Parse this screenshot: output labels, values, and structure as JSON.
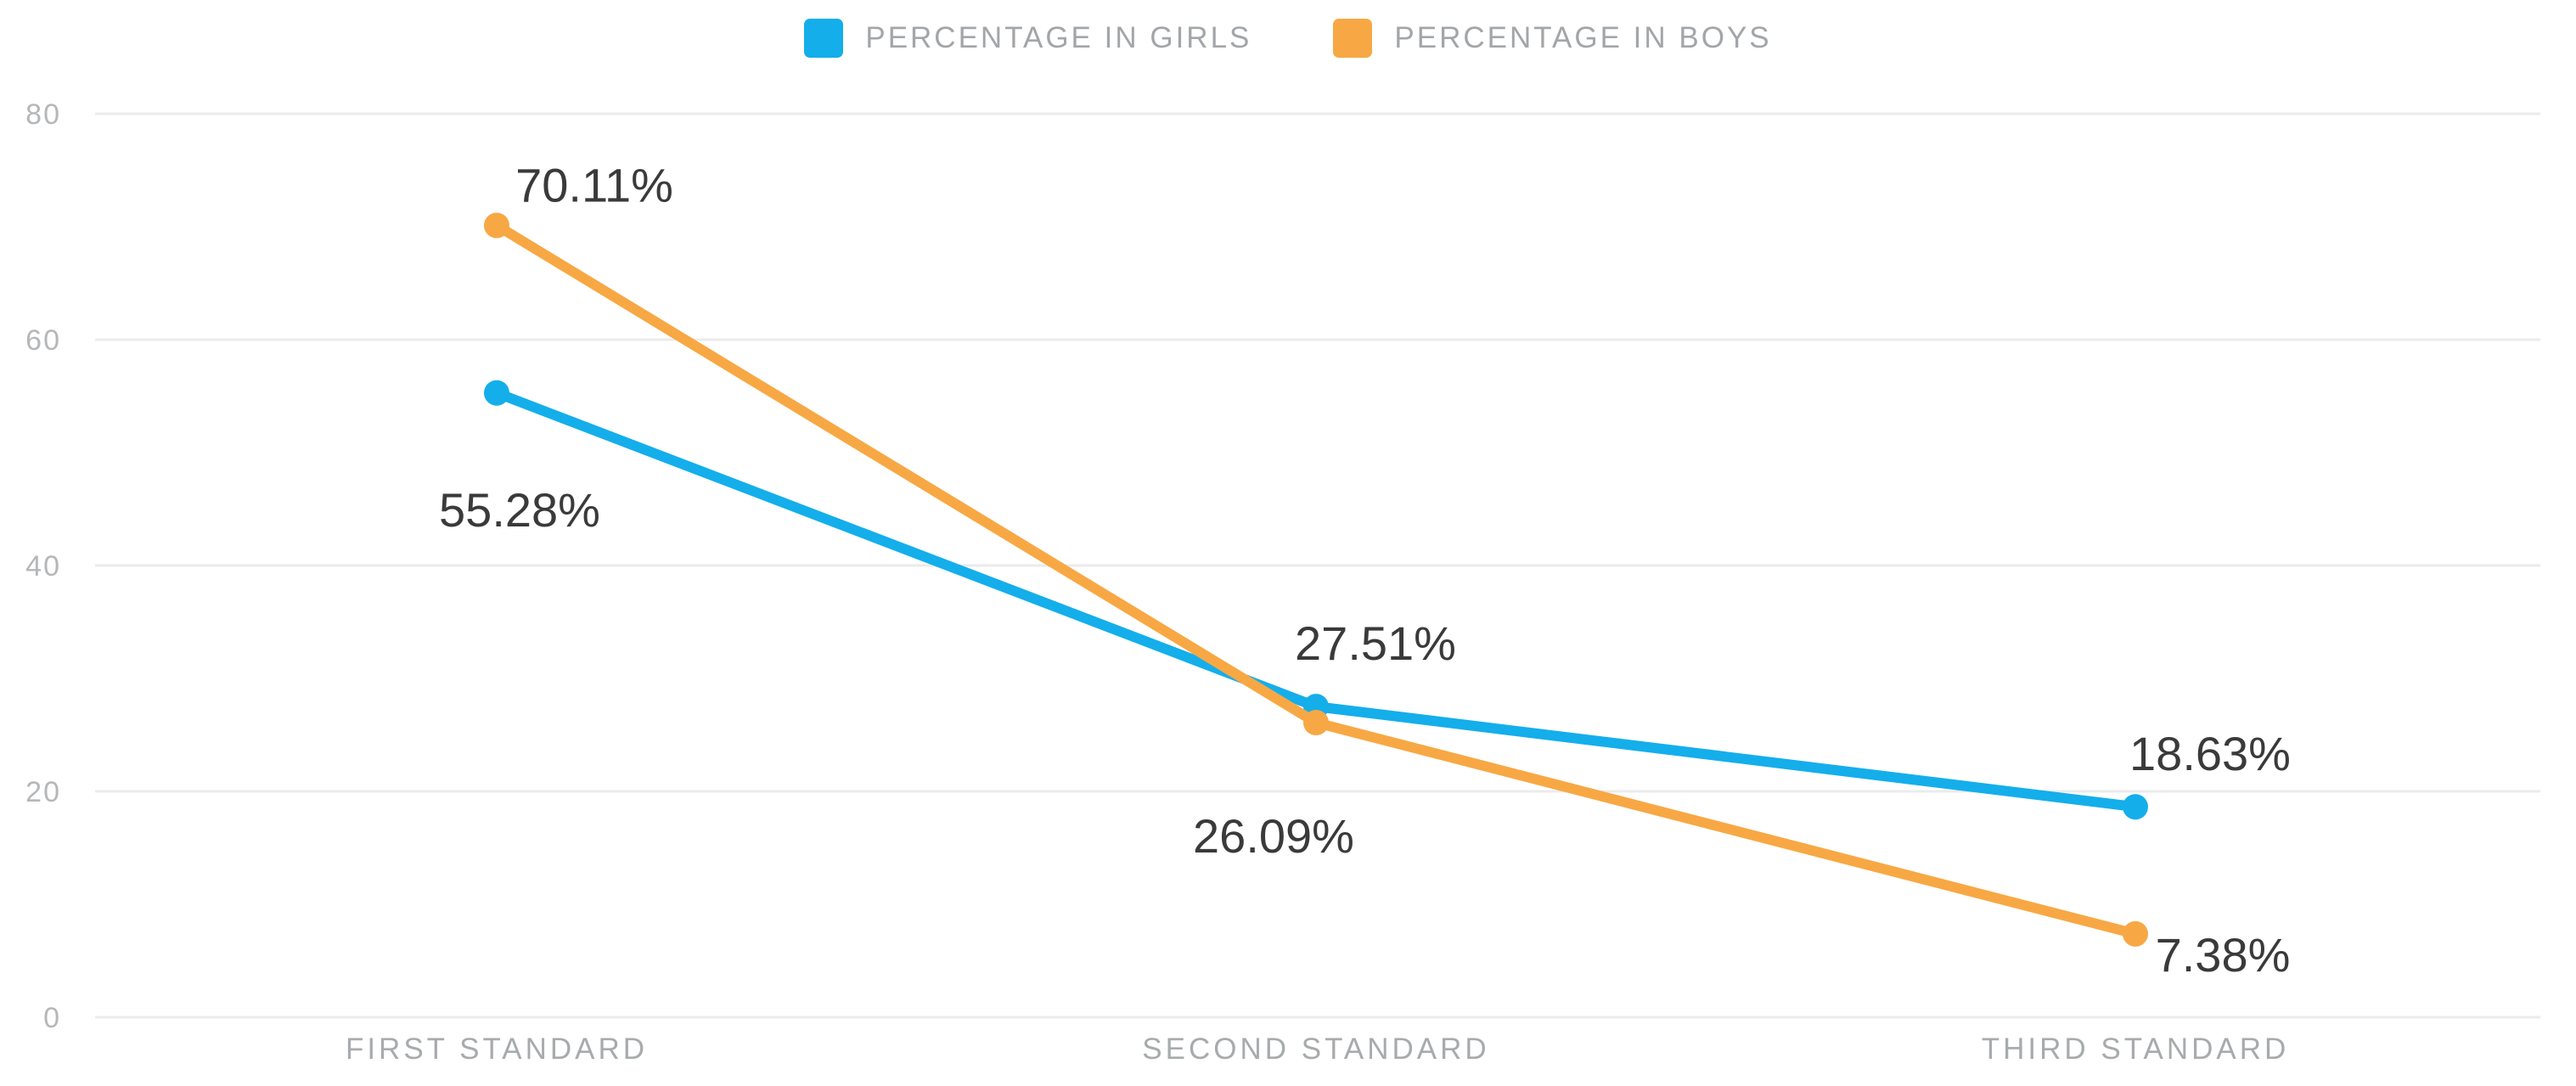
{
  "chart_data": {
    "type": "line",
    "title": "",
    "categories": [
      "FIRST STANDARD",
      "SECOND STANDARD",
      "THIRD STANDARD"
    ],
    "series": [
      {
        "name": "PERCENTAGE IN GIRLS",
        "color": "#14AEEB",
        "values": [
          55.28,
          27.51,
          18.63
        ],
        "point_labels": [
          "55.28%",
          "27.51%",
          "18.63%"
        ],
        "label_offsets": [
          [
            27,
            157
          ],
          [
            70,
            -55
          ],
          [
            88,
            -43
          ]
        ]
      },
      {
        "name": "PERCENTAGE IN BOYS",
        "color": "#F7A844",
        "values": [
          70.11,
          26.09,
          7.38
        ],
        "point_labels": [
          "70.11%",
          "26.09%",
          "7.38%"
        ],
        "label_offsets": [
          [
            115,
            -28
          ],
          [
            -50,
            153
          ],
          [
            103,
            44
          ]
        ]
      }
    ],
    "y_axis": {
      "ticks": [
        0,
        20,
        40,
        60,
        80
      ],
      "range": [
        0,
        80
      ]
    },
    "grid": true,
    "legend_position": "top"
  },
  "colors": {
    "background": "#ffffff",
    "grid": "#ebebeb",
    "tick_label": "#b5b7b9",
    "category_label": "#a8abad",
    "legend_label": "#a3a6a9",
    "value_label": "#3a3a3a"
  }
}
